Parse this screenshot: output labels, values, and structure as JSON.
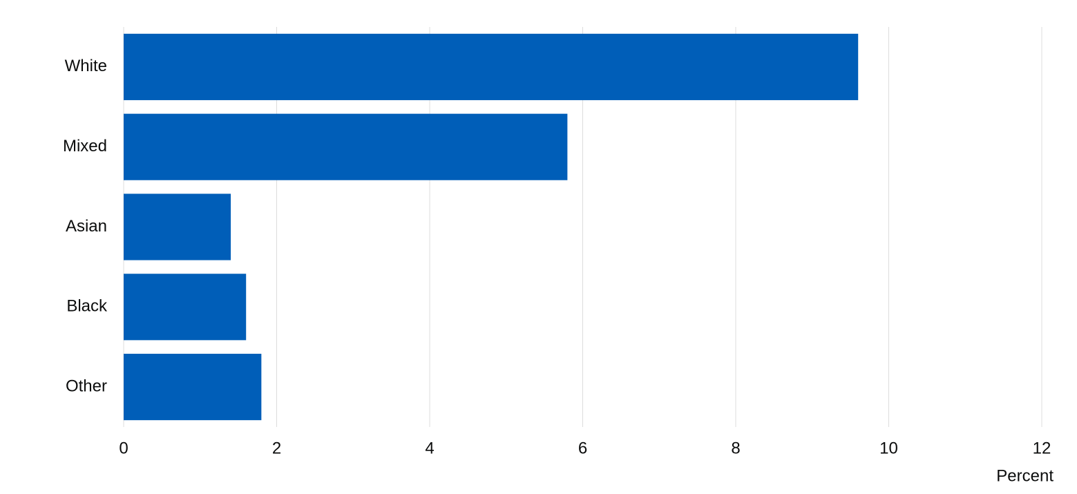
{
  "chart_data": {
    "type": "bar",
    "orientation": "horizontal",
    "categories": [
      "White",
      "Mixed",
      "Asian",
      "Black",
      "Other"
    ],
    "values": [
      9.6,
      5.8,
      1.4,
      1.6,
      1.8
    ],
    "color": "#005eb8",
    "x_label": "Percent",
    "xlim": [
      0,
      12
    ],
    "xticks": [
      0,
      2,
      4,
      6,
      8,
      10,
      12
    ],
    "grid": true
  }
}
